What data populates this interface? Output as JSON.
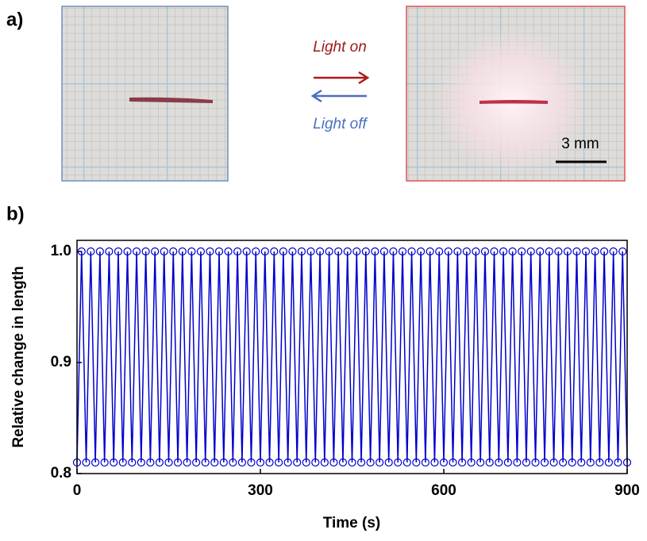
{
  "figure": {
    "panel_a": "a)",
    "panel_b": "b)",
    "light_on": "Light on",
    "light_off": "Light off",
    "scale_bar": "3 mm"
  },
  "chart_data": {
    "type": "line",
    "y_label": "Relative change in length",
    "x_label": "Time (s)",
    "color": "#0000cc",
    "markers": "circle",
    "x": [
      0,
      7.5,
      15,
      22.5,
      30,
      37.5,
      45,
      52.5,
      60,
      67.5,
      75,
      82.5,
      90,
      97.5,
      105,
      112.5,
      120,
      127.5,
      135,
      142.5,
      150,
      157.5,
      165,
      172.5,
      180,
      187.5,
      195,
      202.5,
      210,
      217.5,
      225,
      232.5,
      240,
      247.5,
      255,
      262.5,
      270,
      277.5,
      285,
      292.5,
      300,
      307.5,
      315,
      322.5,
      330,
      337.5,
      345,
      352.5,
      360,
      367.5,
      375,
      382.5,
      390,
      397.5,
      405,
      412.5,
      420,
      427.5,
      435,
      442.5,
      450,
      457.5,
      465,
      472.5,
      480,
      487.5,
      495,
      502.5,
      510,
      517.5,
      525,
      532.5,
      540,
      547.5,
      555,
      562.5,
      570,
      577.5,
      585,
      592.5,
      600,
      607.5,
      615,
      622.5,
      630,
      637.5,
      645,
      652.5,
      660,
      667.5,
      675,
      682.5,
      690,
      697.5,
      705,
      712.5,
      720,
      727.5,
      735,
      742.5,
      750,
      757.5,
      765,
      772.5,
      780,
      787.5,
      795,
      802.5,
      810,
      817.5,
      825,
      832.5,
      840,
      847.5,
      855,
      862.5,
      870,
      877.5,
      885,
      892.5,
      900
    ],
    "values": [
      0.81,
      1,
      0.81,
      1,
      0.81,
      1,
      0.81,
      1,
      0.81,
      1,
      0.81,
      1,
      0.81,
      1,
      0.81,
      1,
      0.81,
      1,
      0.81,
      1,
      0.81,
      1,
      0.81,
      1,
      0.81,
      1,
      0.81,
      1,
      0.81,
      1,
      0.81,
      1,
      0.81,
      1,
      0.81,
      1,
      0.81,
      1,
      0.81,
      1,
      0.81,
      1,
      0.81,
      1,
      0.81,
      1,
      0.81,
      1,
      0.81,
      1,
      0.81,
      1,
      0.81,
      1,
      0.81,
      1,
      0.81,
      1,
      0.81,
      1,
      0.81,
      1,
      0.81,
      1,
      0.81,
      1,
      0.81,
      1,
      0.81,
      1,
      0.81,
      1,
      0.81,
      1,
      0.81,
      1,
      0.81,
      1,
      0.81,
      1,
      0.81,
      1,
      0.81,
      1,
      0.81,
      1,
      0.81,
      1,
      0.81,
      1,
      0.81,
      1,
      0.81,
      1,
      0.81,
      1,
      0.81,
      1,
      0.81,
      1,
      0.81,
      1,
      0.81,
      1,
      0.81,
      1,
      0.81,
      1,
      0.81,
      1,
      0.81,
      1,
      0.81,
      1,
      0.81,
      1,
      0.81,
      1,
      0.81,
      1,
      0.81
    ],
    "xlim": [
      0,
      900
    ],
    "xticks": [
      0,
      300,
      600,
      900
    ],
    "ylim": [
      0.8,
      1.01
    ],
    "yticks": [
      0.8,
      0.9,
      {
        "value": 1,
        "label": "1.0"
      }
    ]
  }
}
